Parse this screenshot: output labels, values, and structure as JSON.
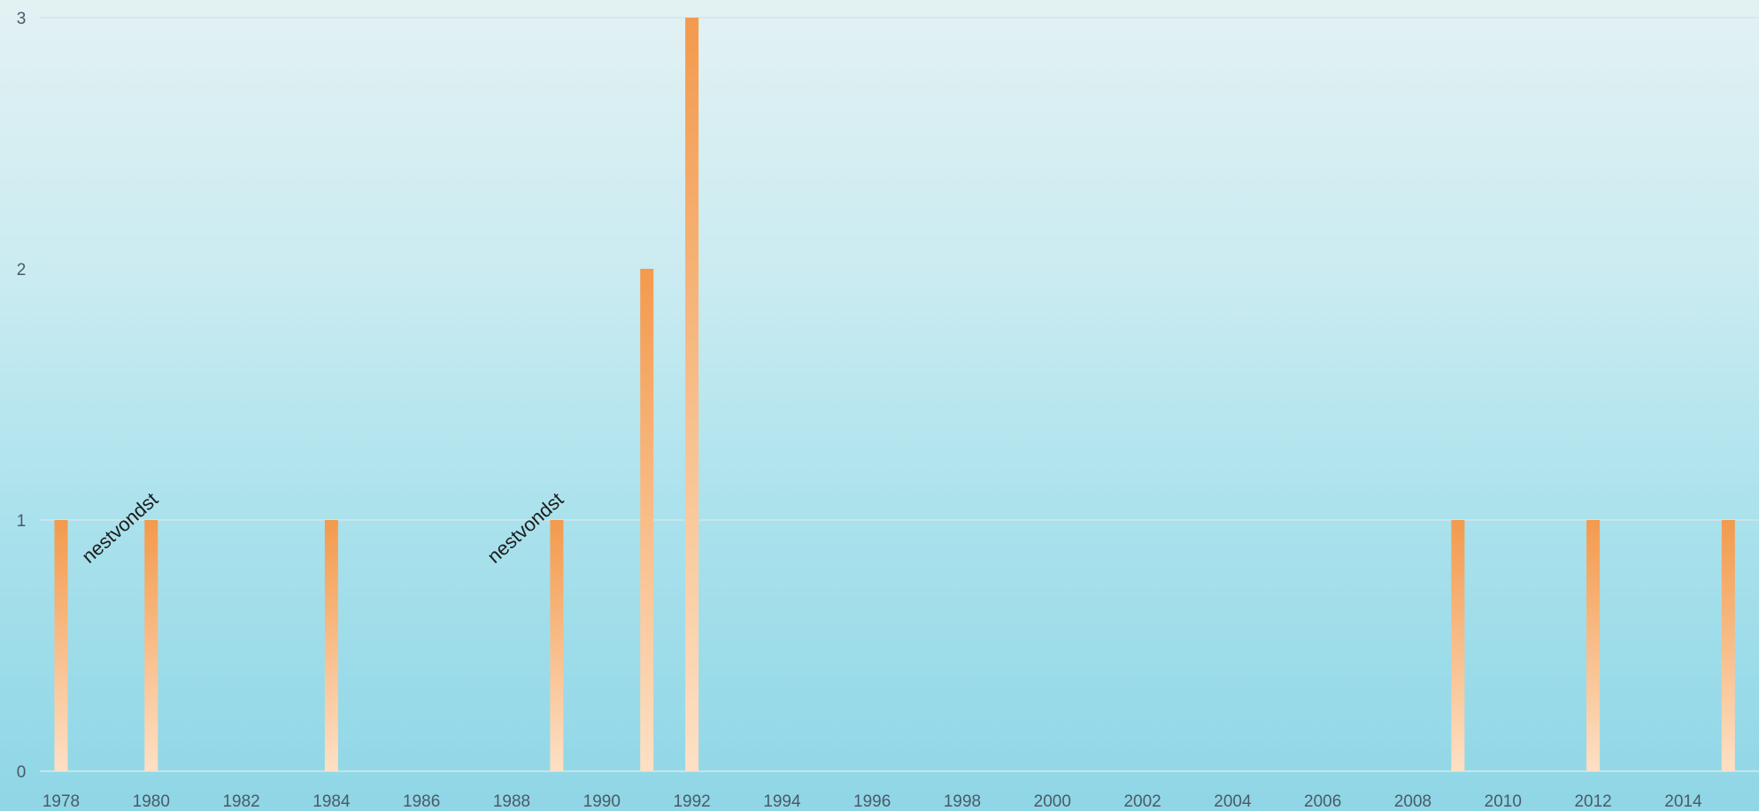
{
  "chart_data": {
    "type": "bar",
    "x": [
      1978,
      1980,
      1984,
      1989,
      1991,
      1992,
      2009,
      2012,
      2015
    ],
    "values": [
      1,
      1,
      1,
      1,
      2,
      3,
      1,
      1,
      1
    ],
    "xlim": [
      1977,
      2016
    ],
    "ylim": [
      0,
      3
    ],
    "x_ticks": [
      "1978",
      "1980",
      "1982",
      "1984",
      "1986",
      "1988",
      "1990",
      "1992",
      "1994",
      "1996",
      "1998",
      "2000",
      "2002",
      "2004",
      "2006",
      "2008",
      "2010",
      "2012",
      "2014"
    ],
    "y_ticks": [
      "0",
      "1",
      "2",
      "3"
    ],
    "annotations": [
      {
        "text": "nestvondst",
        "x": 1980
      },
      {
        "text": "nestvondst",
        "x": 1989
      }
    ],
    "title": "",
    "xlabel": "",
    "ylabel": "",
    "grid": true,
    "colors": {
      "bar_top": "#f39a4d",
      "bar_bottom": "#fde0c5",
      "grid": "#d2e6ea",
      "tick_text": "#4a5a66"
    }
  }
}
